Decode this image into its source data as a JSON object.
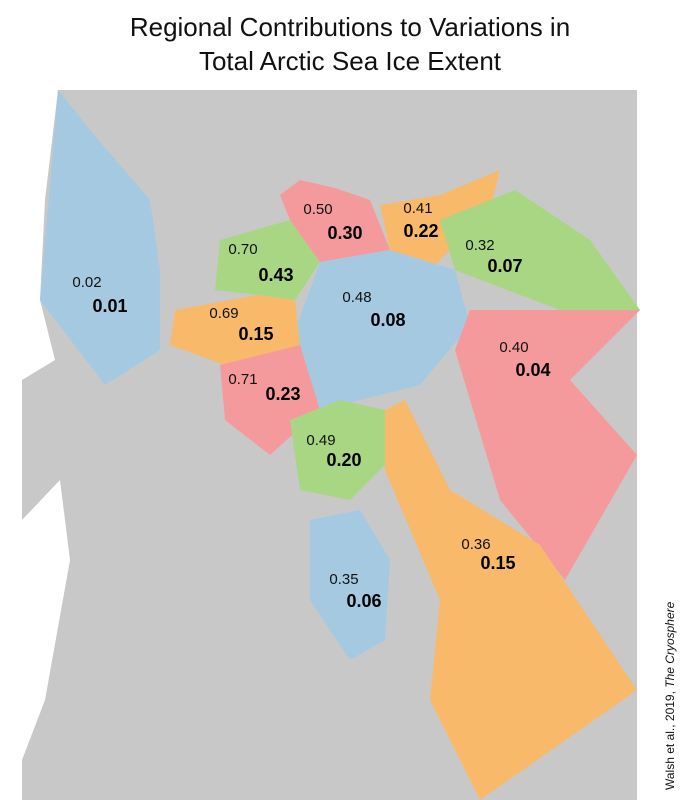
{
  "title": [
    "Regional Contributions to Variations in",
    "Total Arctic Sea Ice Extent"
  ],
  "regions": [
    {
      "upper": "0.02",
      "lower": "0.01"
    },
    {
      "upper": "0.70",
      "lower": "0.43"
    },
    {
      "upper": "0.50",
      "lower": "0.30"
    },
    {
      "upper": "0.41",
      "lower": "0.22"
    },
    {
      "upper": "0.32",
      "lower": "0.07"
    },
    {
      "upper": "0.48",
      "lower": "0.08"
    },
    {
      "upper": "0.40",
      "lower": "0.04"
    },
    {
      "upper": "0.69",
      "lower": "0.15"
    },
    {
      "upper": "0.71",
      "lower": "0.23"
    },
    {
      "upper": "0.49",
      "lower": "0.20"
    },
    {
      "upper": "0.36",
      "lower": "0.15"
    },
    {
      "upper": "0.35",
      "lower": "0.06"
    }
  ],
  "credit": {
    "text": "Walsh et al., 2019, ",
    "journal": "The Cryosphere"
  }
}
